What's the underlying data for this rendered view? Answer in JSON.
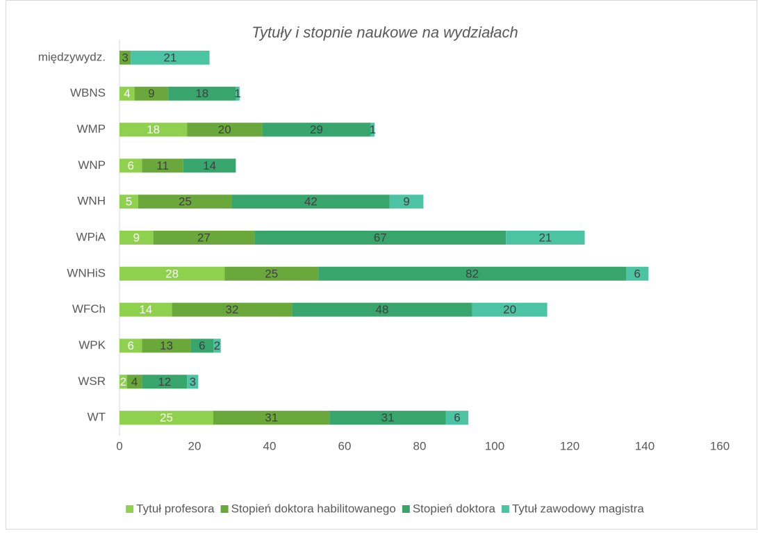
{
  "chart_data": {
    "type": "stacked_bar_horizontal",
    "title": "Tytuły i stopnie naukowe na wydziałach",
    "categories": [
      "międzywydz.",
      "WBNS",
      "WMP",
      "WNP",
      "WNH",
      "WPiA",
      "WNHiS",
      "WFCh",
      "WPK",
      "WSR",
      "WT"
    ],
    "series": [
      {
        "name": "Tytuł profesora",
        "color": "#8fd14f",
        "values": [
          null,
          4,
          18,
          6,
          5,
          9,
          28,
          14,
          6,
          2,
          25
        ]
      },
      {
        "name": "Stopień doktora habilitowanego",
        "color": "#6aa83b",
        "values": [
          3,
          9,
          20,
          11,
          25,
          27,
          25,
          32,
          13,
          4,
          31
        ]
      },
      {
        "name": "Stopień doktora",
        "color": "#38a56c",
        "values": [
          null,
          18,
          29,
          14,
          42,
          67,
          82,
          48,
          6,
          12,
          31
        ]
      },
      {
        "name": "Tytuł zawodowy magistra",
        "color": "#4cc3a3",
        "values": [
          21,
          1,
          1,
          null,
          9,
          21,
          6,
          20,
          2,
          3,
          6
        ]
      }
    ],
    "xlim": [
      0,
      160
    ],
    "xticks": [
      0,
      20,
      40,
      60,
      80,
      100,
      120,
      140,
      160
    ],
    "legend": "bottom",
    "grid": false
  }
}
